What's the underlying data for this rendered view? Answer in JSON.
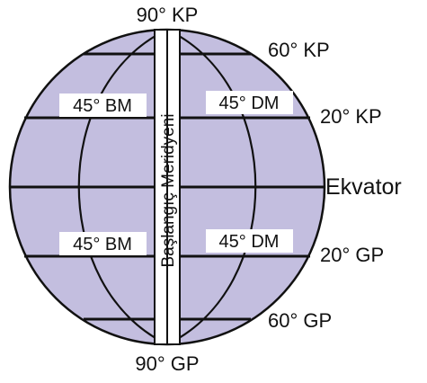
{
  "colors": {
    "globe_fill": "#c3bedf",
    "line": "#111111",
    "label_bg": "#ffffff"
  },
  "labels": {
    "north_pole": "90° KP",
    "south_pole": "90° GP",
    "lat_60_north": "60° KP",
    "lat_20_north": "20° KP",
    "equator": "Ekvator",
    "lat_20_south": "20° GP",
    "lat_60_south": "60° GP",
    "meridian_45_west_top": "45° BM",
    "meridian_45_east_top": "45° DM",
    "meridian_45_west_bottom": "45° BM",
    "meridian_45_east_bottom": "45° DM",
    "prime_meridian": "Başlangıç Meridyeni"
  }
}
